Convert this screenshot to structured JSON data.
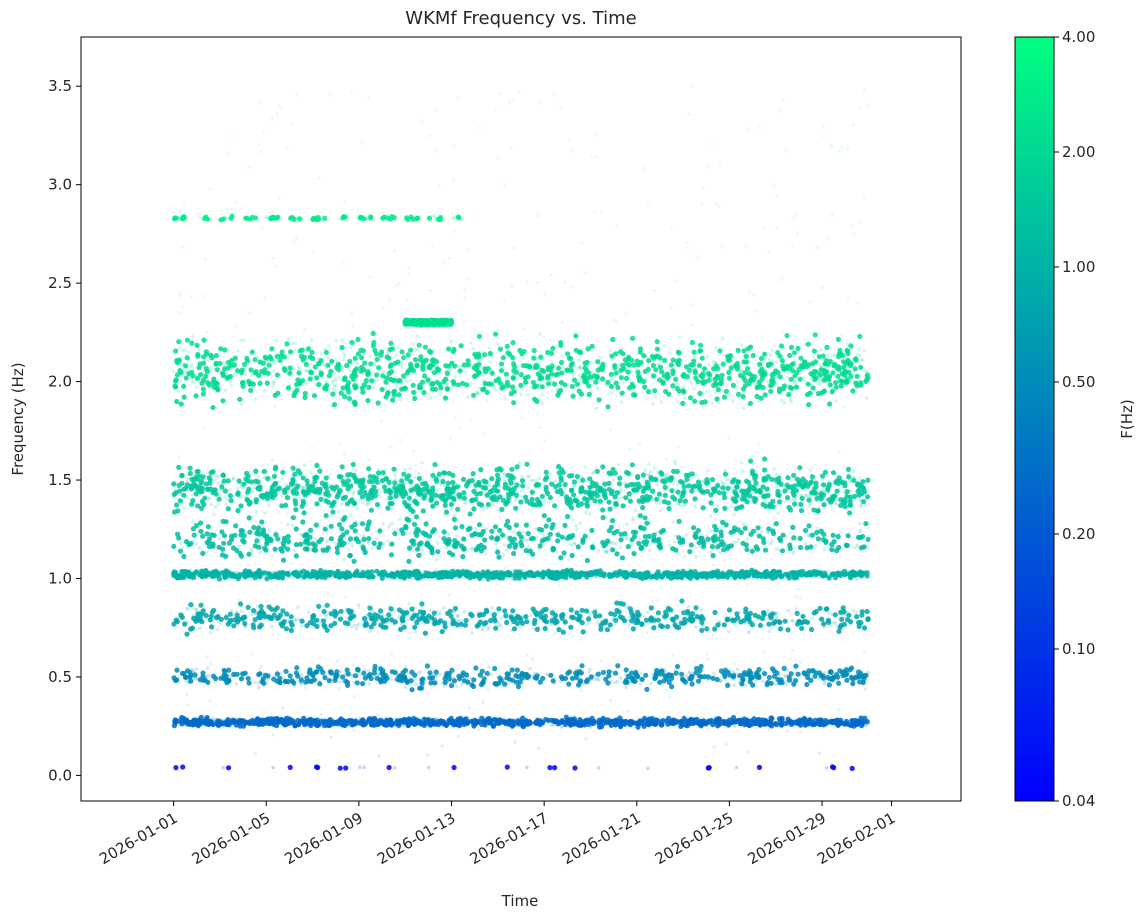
{
  "chart_data": {
    "type": "scatter",
    "title": "WKMf Frequency vs. Time",
    "xlabel": "Time",
    "ylabel": "Frequency (Hz)",
    "xlim": [
      "2025-12-28",
      "2026-02-04"
    ],
    "ylim": [
      -0.13,
      3.75
    ],
    "x_ticks": [
      "2026-01-01",
      "2026-01-05",
      "2026-01-09",
      "2026-01-13",
      "2026-01-17",
      "2026-01-21",
      "2026-01-25",
      "2026-01-29",
      "2026-02-01"
    ],
    "y_ticks": [
      "0.0",
      "0.5",
      "1.0",
      "1.5",
      "2.0",
      "2.5",
      "3.0",
      "3.5"
    ],
    "grid": false,
    "colormap": "winter",
    "colorbar": {
      "label": "F(Hz)",
      "scale": "log",
      "range": [
        0.04,
        4.0
      ],
      "ticks": [
        "0.04",
        "0.10",
        "0.20",
        "0.50",
        "1.00",
        "2.00",
        "4.00"
      ],
      "color_low": "#0000ff",
      "color_high": "#00ff80"
    },
    "bands": [
      {
        "name": "",
        "start": "2026-01-01",
        "end": "2026-01-31",
        "freq": 2.05,
        "spread": 0.16,
        "density": "high"
      },
      {
        "name": "",
        "start": "2026-01-01",
        "end": "2026-01-31",
        "freq": 1.45,
        "spread": 0.12,
        "density": "high"
      },
      {
        "name": "",
        "start": "2026-01-01",
        "end": "2026-01-31",
        "freq": 1.2,
        "spread": 0.1,
        "density": "medium"
      },
      {
        "name": "",
        "start": "2026-01-01",
        "end": "2026-01-31",
        "freq": 1.02,
        "spread": 0.02,
        "density": "high"
      },
      {
        "name": "",
        "start": "2026-01-01",
        "end": "2026-01-31",
        "freq": 0.8,
        "spread": 0.07,
        "density": "medium"
      },
      {
        "name": "",
        "start": "2026-01-01",
        "end": "2026-01-31",
        "freq": 0.5,
        "spread": 0.05,
        "density": "medium"
      },
      {
        "name": "",
        "start": "2026-01-01",
        "end": "2026-01-31",
        "freq": 0.27,
        "spread": 0.02,
        "density": "high"
      },
      {
        "name": "",
        "start": "2026-01-01",
        "end": "2026-01-31",
        "freq": 0.04,
        "spread": 0.005,
        "density": "sparse"
      },
      {
        "name": "",
        "start": "2026-01-01",
        "end": "2026-01-14",
        "freq": 2.83,
        "spread": 0.01,
        "density": "segmented"
      },
      {
        "name": "",
        "start": "2026-01-11",
        "end": "2026-01-13",
        "freq": 2.3,
        "spread": 0.01,
        "density": "high"
      }
    ]
  }
}
